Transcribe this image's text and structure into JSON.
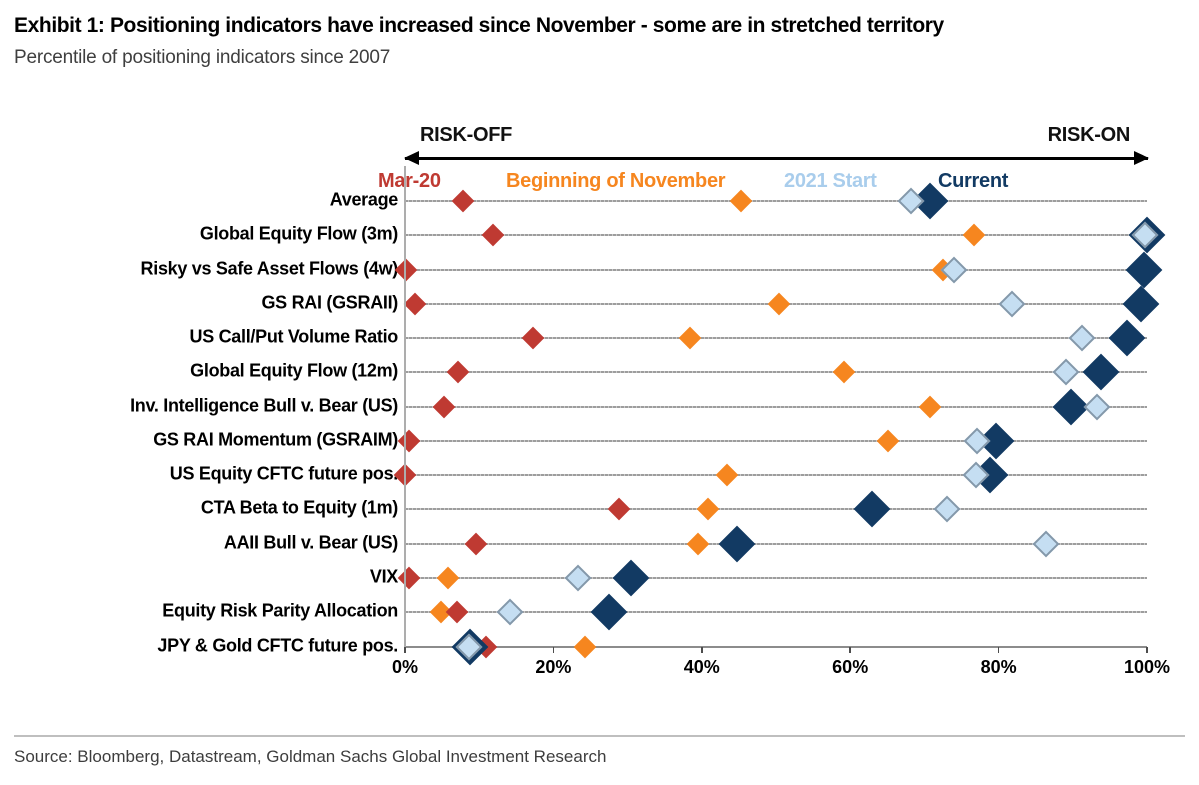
{
  "header": {
    "title": "Exhibit 1: Positioning indicators have increased since November - some are in stretched territory",
    "subtitle": "Percentile of positioning indicators since 2007"
  },
  "footer": {
    "source": "Source: Bloomberg, Datastream, Goldman Sachs Global Investment Research"
  },
  "chart_data": {
    "type": "scatter",
    "title": "Percentile of positioning indicators since 2007",
    "xlabel": "",
    "xlim": [
      0,
      100
    ],
    "x_ticks": [
      "0%",
      "20%",
      "40%",
      "60%",
      "80%",
      "100%"
    ],
    "grid": "horizontal rows",
    "legend_position": "top",
    "annotations": {
      "risk_off": "RISK-OFF",
      "risk_on": "RISK-ON"
    },
    "categories": [
      "Average",
      "Global Equity Flow (3m)",
      "Risky vs Safe Asset Flows (4w)",
      "GS RAI (GSRAII)",
      "US Call/Put Volume Ratio",
      "Global Equity Flow (12m)",
      "Inv. Intelligence Bull v. Bear (US)",
      "GS RAI Momentum (GSRAIM)",
      "US Equity CFTC future pos.",
      "CTA Beta to Equity (1m)",
      "AAII Bull v. Bear (US)",
      "VIX",
      "Equity Risk Parity Allocation",
      "JPY & Gold CFTC future pos."
    ],
    "series": [
      {
        "name": "Mar-20",
        "color": "#bf3a32",
        "values": [
          7.8,
          11.9,
          0.1,
          1.3,
          17.3,
          7.2,
          5.2,
          0.5,
          0.0,
          28.9,
          9.6,
          0.5,
          7.0,
          10.9
        ]
      },
      {
        "name": "Beginning of November",
        "color": "#f6861f",
        "values": [
          45.3,
          76.7,
          72.5,
          50.4,
          38.4,
          59.2,
          70.8,
          65.1,
          43.4,
          40.9,
          39.5,
          5.8,
          4.8,
          24.2
        ]
      },
      {
        "name": "2021 Start",
        "color": "#a9cdec",
        "values": [
          68.2,
          99.7,
          74.0,
          81.8,
          91.2,
          89.1,
          93.2,
          77.1,
          77.0,
          73.1,
          86.4,
          23.3,
          14.1,
          8.6
        ]
      },
      {
        "name": "Current",
        "color": "#123a63",
        "values": [
          70.8,
          100.0,
          99.6,
          99.2,
          97.3,
          93.8,
          89.8,
          79.7,
          78.9,
          62.9,
          44.7,
          30.5,
          27.5,
          8.8
        ]
      }
    ]
  }
}
